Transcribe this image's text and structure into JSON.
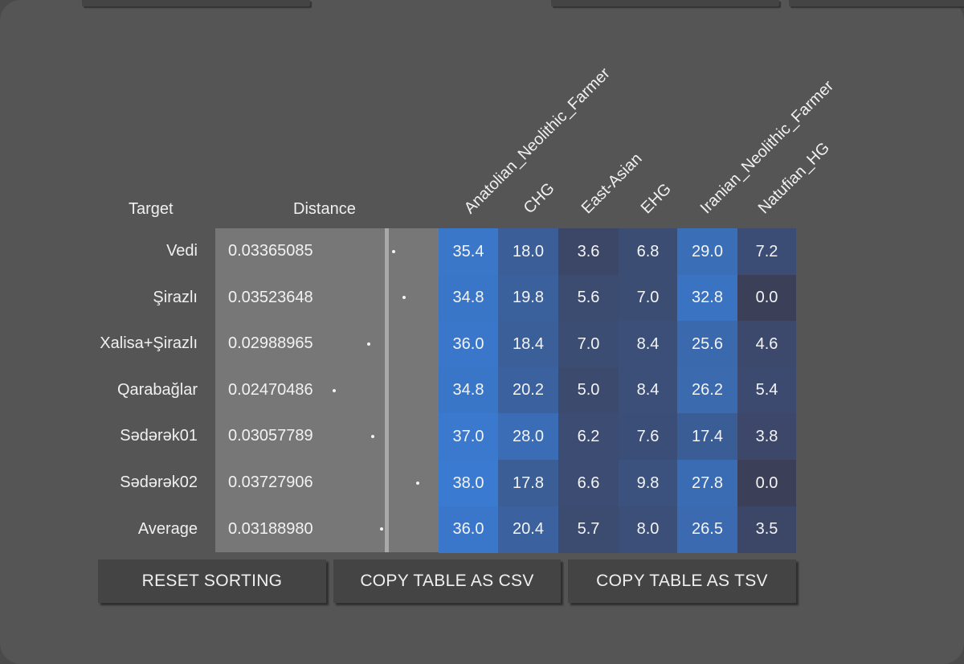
{
  "headers": {
    "target": "Target",
    "distance": "Distance",
    "columns": [
      "Anatolian_Neolithic_Farmer",
      "CHG",
      "East-Asian",
      "EHG",
      "Iranian_Neolithic_Farmer",
      "Natufian_HG"
    ]
  },
  "rows": [
    {
      "target": "Vedi",
      "distance": "0.03365085",
      "values": [
        "35.4",
        "18.0",
        "3.6",
        "6.8",
        "29.0",
        "7.2"
      ]
    },
    {
      "target": "Şirazlı",
      "distance": "0.03523648",
      "values": [
        "34.8",
        "19.8",
        "5.6",
        "7.0",
        "32.8",
        "0.0"
      ]
    },
    {
      "target": "Xalisa+Şirazlı",
      "distance": "0.02988965",
      "values": [
        "36.0",
        "18.4",
        "7.0",
        "8.4",
        "25.6",
        "4.6"
      ]
    },
    {
      "target": "Qarabağlar",
      "distance": "0.02470486",
      "values": [
        "34.8",
        "20.2",
        "5.0",
        "8.4",
        "26.2",
        "5.4"
      ]
    },
    {
      "target": "Sədərək01",
      "distance": "0.03057789",
      "values": [
        "37.0",
        "28.0",
        "6.2",
        "7.6",
        "17.4",
        "3.8"
      ]
    },
    {
      "target": "Sədərək02",
      "distance": "0.03727906",
      "values": [
        "38.0",
        "17.8",
        "6.6",
        "9.8",
        "27.8",
        "0.0"
      ]
    },
    {
      "target": "Average",
      "distance": "0.03188980",
      "values": [
        "36.0",
        "20.4",
        "5.7",
        "8.0",
        "26.5",
        "3.5"
      ]
    }
  ],
  "buttons": {
    "reset": "RESET SORTING",
    "csv": "COPY TABLE AS CSV",
    "tsv": "COPY TABLE AS TSV"
  },
  "colors": {
    "background": "#555555",
    "distance_bg": "#777777",
    "button_bg": "#444444",
    "cell_low": "#3c3f58",
    "cell_high": "#3a7ad0"
  }
}
